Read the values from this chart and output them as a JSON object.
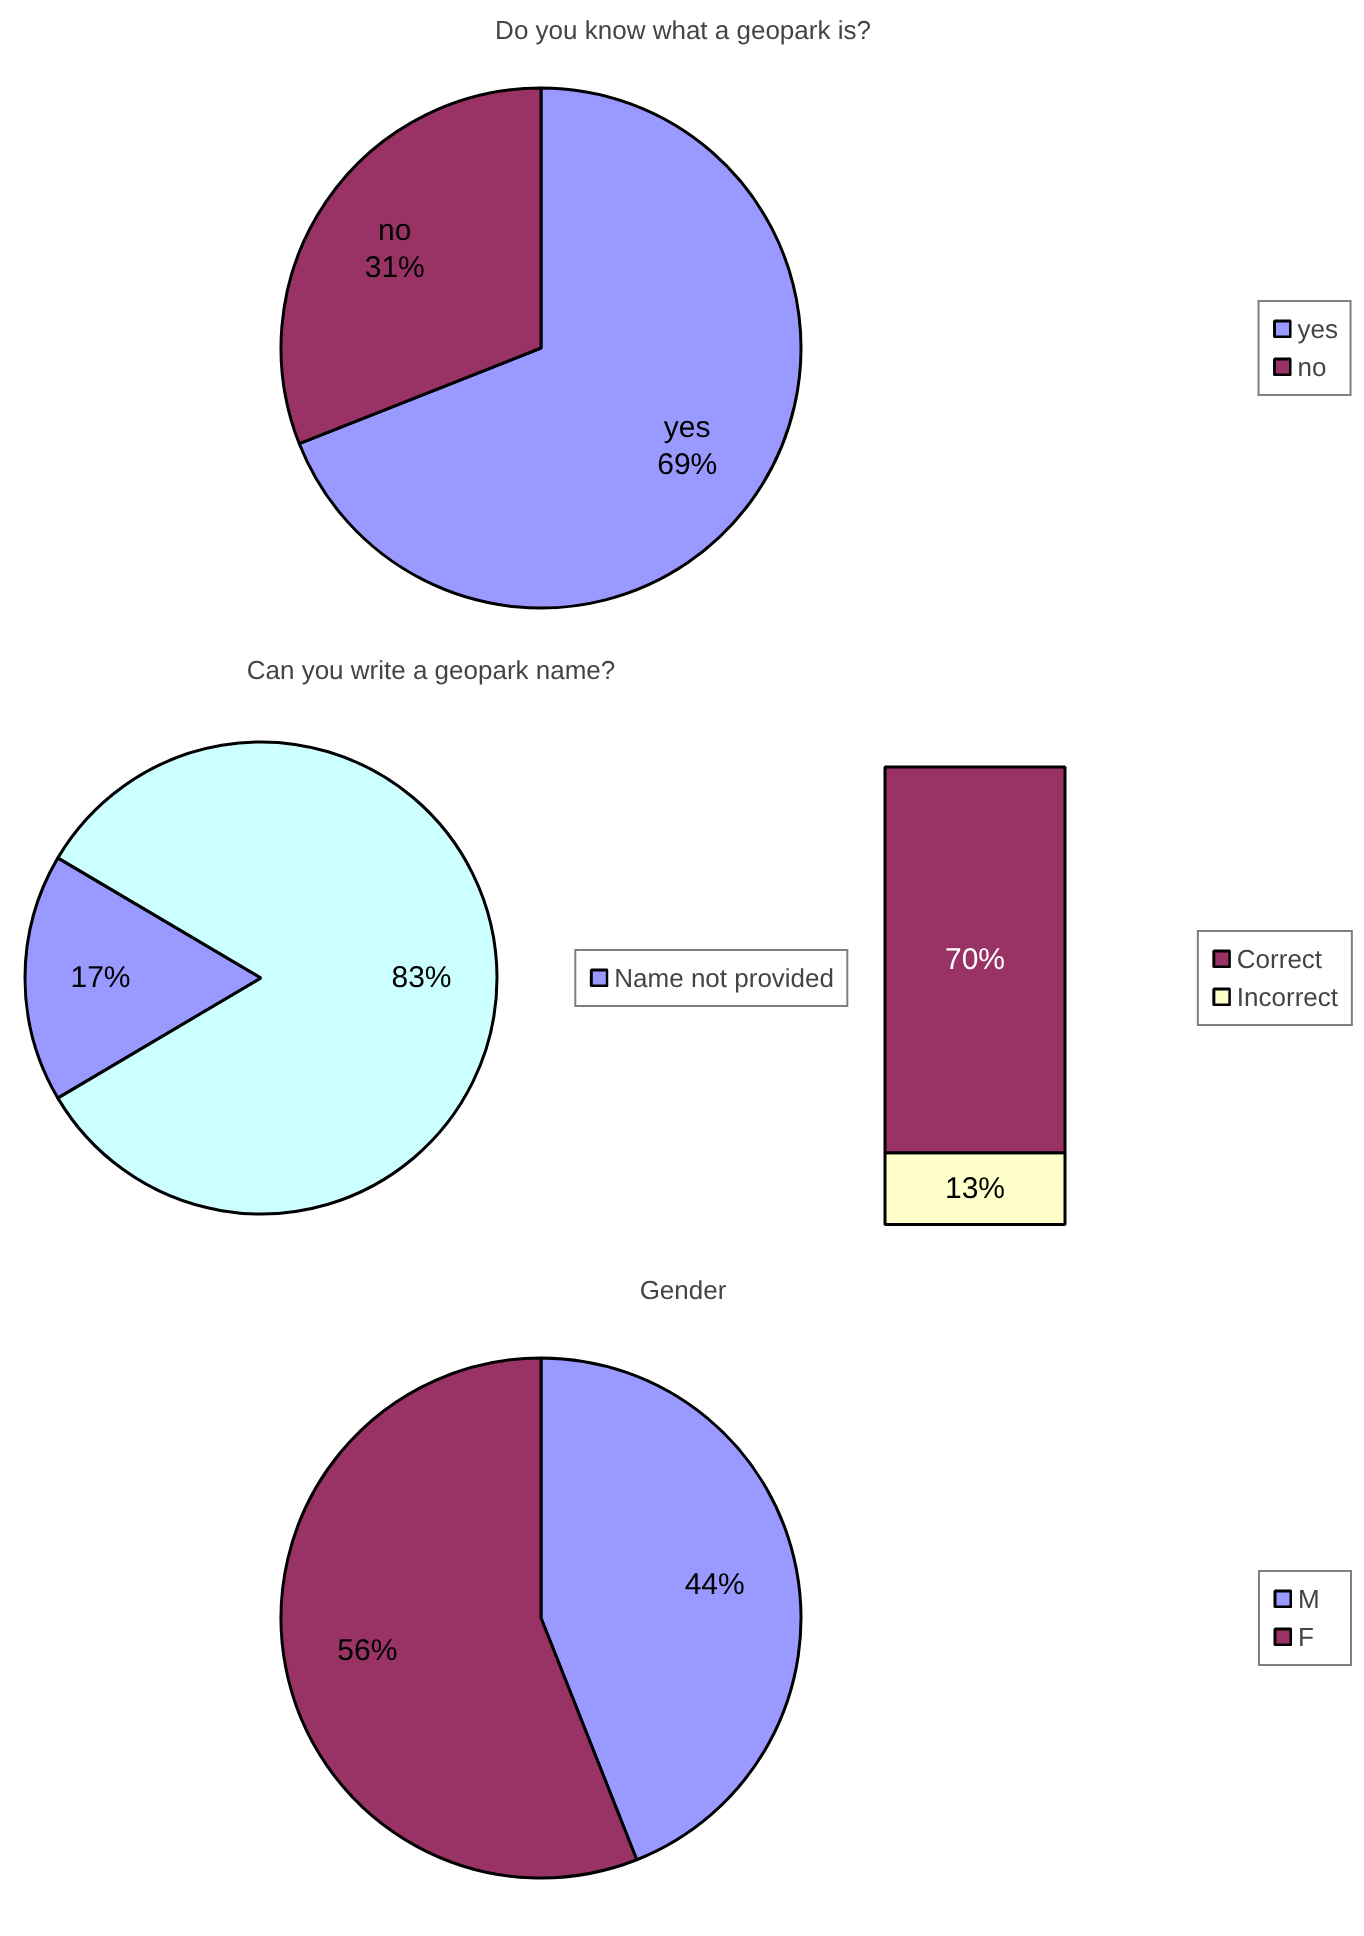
{
  "chart_data": [
    {
      "type": "pie",
      "title": "Do you know what a geopark is?",
      "categories": [
        "yes",
        "no"
      ],
      "values": [
        69,
        31
      ],
      "colors": [
        "#9999ff",
        "#993366"
      ],
      "value_labels": [
        "yes\n69%",
        "no\n31%"
      ],
      "legend": "right"
    },
    {
      "type": "pie",
      "title": "Can you write a geopark name?",
      "categories": [
        "Name not provided",
        null
      ],
      "values": [
        17,
        83
      ],
      "colors": [
        "#9999ff",
        "#ccffff"
      ],
      "value_labels": [
        "17%",
        "83%"
      ],
      "legend": "right"
    },
    {
      "type": "bar",
      "stacked": true,
      "categories": [
        null
      ],
      "series": [
        {
          "name": "Incorrect",
          "color": "#ffffcc",
          "values": [
            13
          ],
          "value_labels": [
            "13%"
          ]
        },
        {
          "name": "Correct",
          "color": "#993366",
          "values": [
            70
          ],
          "value_labels": [
            "70%"
          ]
        }
      ],
      "legend": "right"
    },
    {
      "type": "pie",
      "title": "Gender",
      "categories": [
        "M",
        "F"
      ],
      "values": [
        44,
        56
      ],
      "colors": [
        "#9999ff",
        "#993366"
      ],
      "value_labels": [
        "44%",
        "56%"
      ],
      "legend": "right"
    }
  ]
}
